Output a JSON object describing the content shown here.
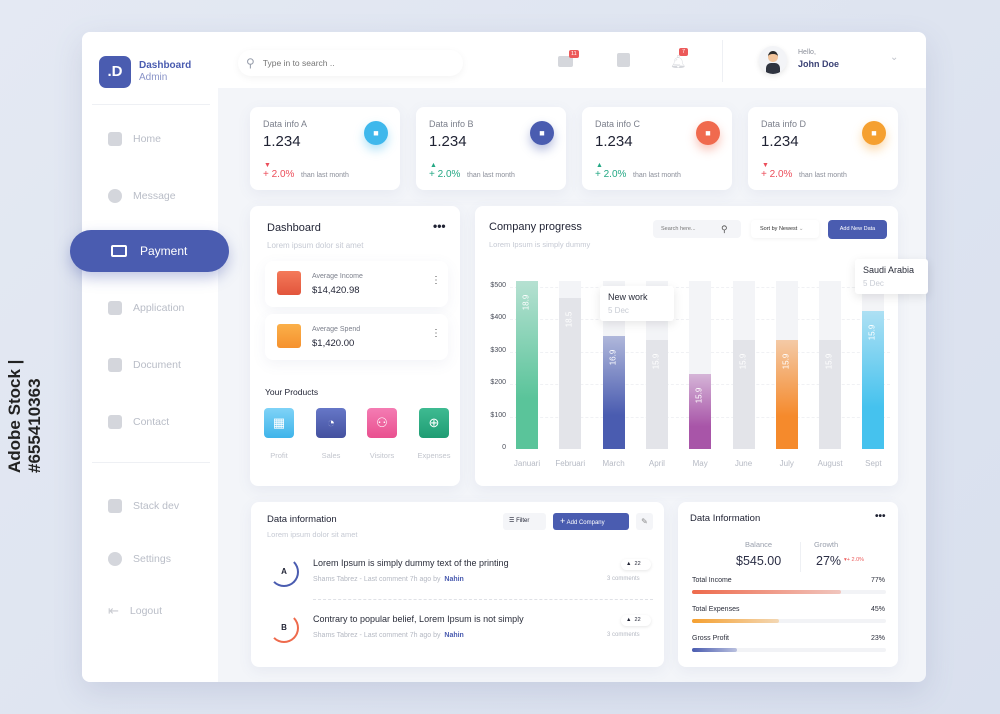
{
  "watermark": "Adobe Stock | #655410363",
  "brand": {
    "logo": ".D",
    "title": "Dashboard",
    "subtitle": "Admin"
  },
  "sidebar": {
    "items": [
      {
        "label": "Home"
      },
      {
        "label": "Message"
      },
      {
        "label": "Payment",
        "active": true
      },
      {
        "label": "Application"
      },
      {
        "label": "Document"
      },
      {
        "label": "Contact"
      },
      {
        "label": "Stack dev"
      },
      {
        "label": "Settings"
      },
      {
        "label": "Logout"
      }
    ]
  },
  "topbar": {
    "search_placeholder": "Type in to search ..",
    "mail_badge": "11",
    "bell_badge": "7",
    "greeting": "Hello,",
    "user": "John Doe"
  },
  "stats": [
    {
      "label": "Data info A",
      "value": "1.234",
      "change": "+ 2.0%",
      "trend": "down",
      "compare": "than last month",
      "color": "#3fb8ec"
    },
    {
      "label": "Data info B",
      "value": "1.234",
      "change": "+ 2.0%",
      "trend": "up",
      "compare": "than last month",
      "color": "#4a5cb0"
    },
    {
      "label": "Data info C",
      "value": "1.234",
      "change": "+ 2.0%",
      "trend": "up",
      "compare": "than last month",
      "color": "#f06a4e"
    },
    {
      "label": "Data info D",
      "value": "1.234",
      "change": "+ 2.0%",
      "trend": "down",
      "compare": "than last month",
      "color": "#f5a030"
    }
  ],
  "dashboard": {
    "title": "Dashboard",
    "subtitle": "Lorem ipsum dolor sit amet",
    "income_label": "Average Income",
    "income": "$14,420.98",
    "spend_label": "Average Spend",
    "spend": "$1,420.00",
    "products_title": "Your Products",
    "products": [
      "Profit",
      "Sales",
      "Visitors",
      "Expenses"
    ]
  },
  "progress": {
    "title": "Company progress",
    "subtitle": "Lorem Ipsum is simply dummy",
    "search_placeholder": "Search here...",
    "sort": "Sort by Newest",
    "add_button": "Add New Data",
    "tooltip1": {
      "title": "New work",
      "date": "5 Dec"
    },
    "tooltip2": {
      "title": "Saudi Arabia",
      "date": "5 Dec"
    }
  },
  "chart_data": {
    "type": "bar",
    "categories": [
      "Januari",
      "Februari",
      "March",
      "April",
      "May",
      "June",
      "July",
      "August",
      "Sept"
    ],
    "values": [
      520,
      465,
      350,
      335,
      230,
      335,
      335,
      335,
      425
    ],
    "labels": [
      "18.9",
      "18.5",
      "16.9",
      "15.9",
      "15.9",
      "15.9",
      "15.9",
      "15.9",
      "15.9"
    ],
    "colors": [
      "#5ac49a",
      "#e3e4e9",
      "#4a5cb0",
      "#e3e4e9",
      "#a855a8",
      "#e3e4e9",
      "#f58a2c",
      "#e3e4e9",
      "#45c2ee"
    ],
    "yticks": [
      "0",
      "$100",
      "$200",
      "$300",
      "$400",
      "$500"
    ],
    "ylim": [
      0,
      520
    ],
    "max_track": 520
  },
  "datainfo": {
    "title": "Data information",
    "subtitle": "Lorem ipsum dolor sit amet",
    "filter": "Filter",
    "add": "Add Company",
    "rows": [
      {
        "avatar": "A",
        "title": "Lorem Ipsum is simply dummy text of the printing",
        "meta": "Shams Tabrez - Last comment 7h ago by",
        "author": "Nahin",
        "votes": "22",
        "comments": "3 comments"
      },
      {
        "avatar": "B",
        "title": "Contrary to popular belief, Lorem Ipsum is not simply",
        "meta": "Shams Tabrez - Last comment 7h ago by",
        "author": "Nahin",
        "votes": "22",
        "comments": "3 comments"
      }
    ]
  },
  "summary": {
    "title": "Data Information",
    "balance_label": "Balance",
    "balance": "$545.00",
    "growth_label": "Growth",
    "growth": "27%",
    "growth_change": "+ 2.0%",
    "bars": [
      {
        "label": "Total Income",
        "pct": "77%",
        "value": 77,
        "color": "#ee6a4c"
      },
      {
        "label": "Total Expenses",
        "pct": "45%",
        "value": 45,
        "color": "#f5a030"
      },
      {
        "label": "Gross Profit",
        "pct": "23%",
        "value": 23,
        "color": "#4a5cb0"
      }
    ]
  }
}
